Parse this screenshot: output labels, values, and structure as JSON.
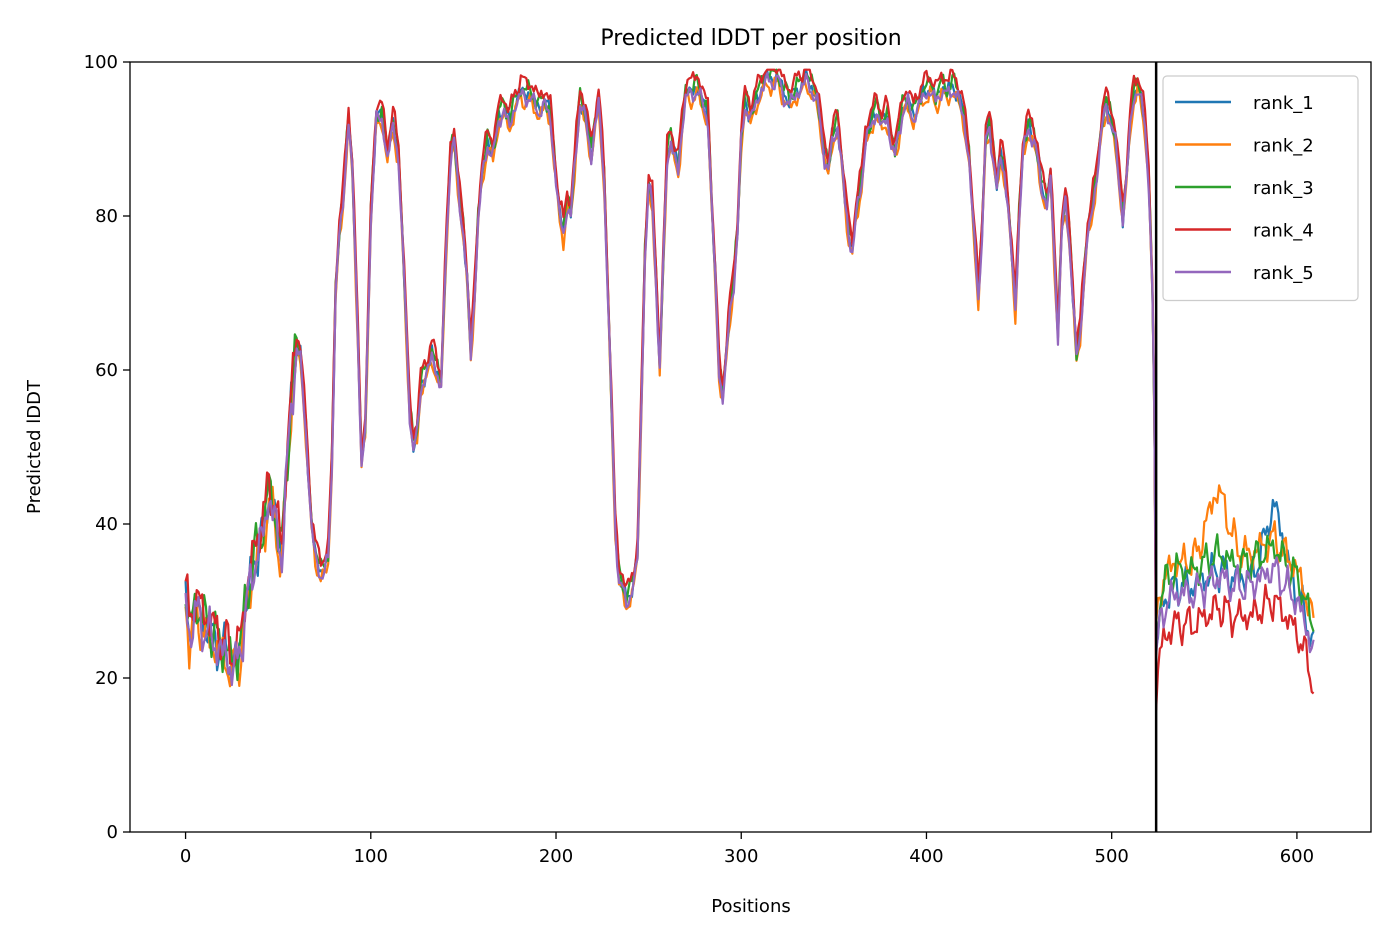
{
  "chart_data": {
    "type": "line",
    "title": "Predicted lDDT per position",
    "xlabel": "Positions",
    "ylabel": "Predicted lDDT",
    "xlim": [
      -30,
      640
    ],
    "ylim": [
      0,
      100
    ],
    "xticks": [
      0,
      100,
      200,
      300,
      400,
      500,
      600
    ],
    "yticks": [
      0,
      20,
      40,
      60,
      80,
      100
    ],
    "grid": false,
    "legend_position": "top-right",
    "vline_x": 524,
    "series": [
      {
        "name": "rank_1",
        "color": "#1f77b4"
      },
      {
        "name": "rank_2",
        "color": "#ff7f0e"
      },
      {
        "name": "rank_3",
        "color": "#2ca02c"
      },
      {
        "name": "rank_4",
        "color": "#d62728"
      },
      {
        "name": "rank_5",
        "color": "#9467bd"
      }
    ],
    "chain_a_profile": [
      [
        0,
        30
      ],
      [
        2,
        26
      ],
      [
        5,
        29
      ],
      [
        8,
        28
      ],
      [
        10,
        27
      ],
      [
        13,
        26
      ],
      [
        16,
        25
      ],
      [
        19,
        24
      ],
      [
        22,
        23
      ],
      [
        25,
        22
      ],
      [
        28,
        22
      ],
      [
        30,
        25
      ],
      [
        33,
        30
      ],
      [
        36,
        34
      ],
      [
        38,
        36
      ],
      [
        40,
        38
      ],
      [
        43,
        40
      ],
      [
        45,
        45
      ],
      [
        47,
        42
      ],
      [
        50,
        38
      ],
      [
        52,
        37
      ],
      [
        55,
        48
      ],
      [
        57,
        56
      ],
      [
        60,
        63
      ],
      [
        62,
        62
      ],
      [
        65,
        52
      ],
      [
        68,
        40
      ],
      [
        70,
        36
      ],
      [
        73,
        34
      ],
      [
        75,
        34
      ],
      [
        77,
        36
      ],
      [
        79,
        48
      ],
      [
        81,
        70
      ],
      [
        83,
        78
      ],
      [
        85,
        82
      ],
      [
        88,
        93
      ],
      [
        90,
        86
      ],
      [
        93,
        65
      ],
      [
        95,
        48
      ],
      [
        97,
        52
      ],
      [
        100,
        80
      ],
      [
        103,
        93
      ],
      [
        106,
        93
      ],
      [
        109,
        88
      ],
      [
        112,
        92
      ],
      [
        115,
        88
      ],
      [
        118,
        72
      ],
      [
        121,
        55
      ],
      [
        123,
        50
      ],
      [
        125,
        52
      ],
      [
        127,
        58
      ],
      [
        130,
        60
      ],
      [
        133,
        62
      ],
      [
        136,
        60
      ],
      [
        138,
        58
      ],
      [
        141,
        78
      ],
      [
        143,
        88
      ],
      [
        145,
        90
      ],
      [
        148,
        82
      ],
      [
        150,
        78
      ],
      [
        152,
        72
      ],
      [
        154,
        62
      ],
      [
        156,
        70
      ],
      [
        158,
        80
      ],
      [
        160,
        85
      ],
      [
        163,
        90
      ],
      [
        166,
        88
      ],
      [
        169,
        93
      ],
      [
        172,
        94
      ],
      [
        175,
        92
      ],
      [
        178,
        95
      ],
      [
        181,
        96
      ],
      [
        185,
        96
      ],
      [
        188,
        95
      ],
      [
        191,
        94
      ],
      [
        194,
        95
      ],
      [
        197,
        93
      ],
      [
        200,
        85
      ],
      [
        202,
        80
      ],
      [
        204,
        78
      ],
      [
        206,
        82
      ],
      [
        208,
        80
      ],
      [
        211,
        90
      ],
      [
        213,
        95
      ],
      [
        216,
        93
      ],
      [
        219,
        88
      ],
      [
        221,
        92
      ],
      [
        223,
        95
      ],
      [
        226,
        85
      ],
      [
        228,
        70
      ],
      [
        230,
        55
      ],
      [
        232,
        40
      ],
      [
        234,
        33
      ],
      [
        236,
        32
      ],
      [
        238,
        30
      ],
      [
        240,
        31
      ],
      [
        242,
        33
      ],
      [
        244,
        36
      ],
      [
        246,
        55
      ],
      [
        248,
        75
      ],
      [
        250,
        84
      ],
      [
        252,
        82
      ],
      [
        254,
        72
      ],
      [
        256,
        60
      ],
      [
        258,
        75
      ],
      [
        260,
        88
      ],
      [
        262,
        90
      ],
      [
        264,
        88
      ],
      [
        266,
        86
      ],
      [
        268,
        92
      ],
      [
        270,
        96
      ],
      [
        273,
        96
      ],
      [
        276,
        97
      ],
      [
        279,
        95
      ],
      [
        282,
        93
      ],
      [
        284,
        82
      ],
      [
        286,
        72
      ],
      [
        288,
        60
      ],
      [
        290,
        57
      ],
      [
        292,
        62
      ],
      [
        294,
        68
      ],
      [
        296,
        72
      ],
      [
        298,
        78
      ],
      [
        300,
        90
      ],
      [
        302,
        95
      ],
      [
        305,
        93
      ],
      [
        308,
        95
      ],
      [
        311,
        97
      ],
      [
        314,
        98
      ],
      [
        317,
        98
      ],
      [
        320,
        98
      ],
      [
        323,
        96
      ],
      [
        326,
        95
      ],
      [
        329,
        96
      ],
      [
        332,
        97
      ],
      [
        335,
        98
      ],
      [
        338,
        97
      ],
      [
        341,
        95
      ],
      [
        343,
        92
      ],
      [
        345,
        88
      ],
      [
        347,
        86
      ],
      [
        349,
        90
      ],
      [
        352,
        92
      ],
      [
        354,
        88
      ],
      [
        356,
        82
      ],
      [
        358,
        78
      ],
      [
        360,
        76
      ],
      [
        362,
        80
      ],
      [
        365,
        85
      ],
      [
        367,
        90
      ],
      [
        370,
        92
      ],
      [
        373,
        94
      ],
      [
        376,
        92
      ],
      [
        379,
        93
      ],
      [
        381,
        90
      ],
      [
        383,
        88
      ],
      [
        385,
        91
      ],
      [
        387,
        94
      ],
      [
        390,
        95
      ],
      [
        393,
        93
      ],
      [
        396,
        95
      ],
      [
        399,
        96
      ],
      [
        402,
        97
      ],
      [
        405,
        95
      ],
      [
        408,
        97
      ],
      [
        411,
        96
      ],
      [
        414,
        97
      ],
      [
        417,
        96
      ],
      [
        420,
        93
      ],
      [
        423,
        88
      ],
      [
        425,
        80
      ],
      [
        428,
        70
      ],
      [
        430,
        78
      ],
      [
        432,
        90
      ],
      [
        434,
        92
      ],
      [
        436,
        88
      ],
      [
        438,
        84
      ],
      [
        440,
        88
      ],
      [
        442,
        86
      ],
      [
        444,
        82
      ],
      [
        446,
        75
      ],
      [
        448,
        68
      ],
      [
        450,
        80
      ],
      [
        452,
        88
      ],
      [
        455,
        92
      ],
      [
        458,
        90
      ],
      [
        460,
        88
      ],
      [
        462,
        84
      ],
      [
        465,
        82
      ],
      [
        467,
        85
      ],
      [
        469,
        75
      ],
      [
        471,
        65
      ],
      [
        473,
        78
      ],
      [
        475,
        82
      ],
      [
        477,
        78
      ],
      [
        479,
        70
      ],
      [
        481,
        62
      ],
      [
        483,
        65
      ],
      [
        485,
        72
      ],
      [
        487,
        78
      ],
      [
        489,
        80
      ],
      [
        491,
        84
      ],
      [
        493,
        88
      ],
      [
        495,
        92
      ],
      [
        497,
        95
      ],
      [
        499,
        93
      ],
      [
        502,
        90
      ],
      [
        504,
        85
      ],
      [
        506,
        80
      ],
      [
        508,
        85
      ],
      [
        510,
        92
      ],
      [
        512,
        96
      ],
      [
        514,
        97
      ],
      [
        516,
        95
      ],
      [
        518,
        92
      ],
      [
        520,
        85
      ],
      [
        522,
        70
      ],
      [
        523,
        55
      ]
    ],
    "chain_b_profile": [
      [
        524,
        22
      ],
      [
        526,
        27
      ],
      [
        528,
        29
      ],
      [
        531,
        30
      ],
      [
        534,
        31
      ],
      [
        537,
        31
      ],
      [
        540,
        31
      ],
      [
        543,
        31
      ],
      [
        546,
        31
      ],
      [
        549,
        32
      ],
      [
        552,
        32
      ],
      [
        555,
        33
      ],
      [
        558,
        33
      ],
      [
        561,
        33
      ],
      [
        564,
        32
      ],
      [
        567,
        32
      ],
      [
        570,
        32
      ],
      [
        573,
        32
      ],
      [
        576,
        32
      ],
      [
        579,
        33
      ],
      [
        582,
        33
      ],
      [
        585,
        34
      ],
      [
        588,
        34
      ],
      [
        591,
        33
      ],
      [
        594,
        32
      ],
      [
        597,
        31
      ],
      [
        600,
        30
      ],
      [
        603,
        28
      ],
      [
        606,
        26
      ],
      [
        609,
        23
      ]
    ],
    "chain_a_offsets": [
      0,
      -1,
      0.5,
      1.5,
      -0.5
    ],
    "chain_b_offsets": [
      1,
      4,
      3,
      -4,
      0
    ],
    "chain_b_bumps": [
      {
        "center": 588,
        "height": 7,
        "width": 7
      },
      {
        "center": 557,
        "height": 7,
        "width": 8
      },
      {
        "center": 0,
        "height": 0,
        "width": 1
      },
      {
        "center": 0,
        "height": 0,
        "width": 1
      },
      {
        "center": 0,
        "height": 0,
        "width": 1
      }
    ]
  }
}
